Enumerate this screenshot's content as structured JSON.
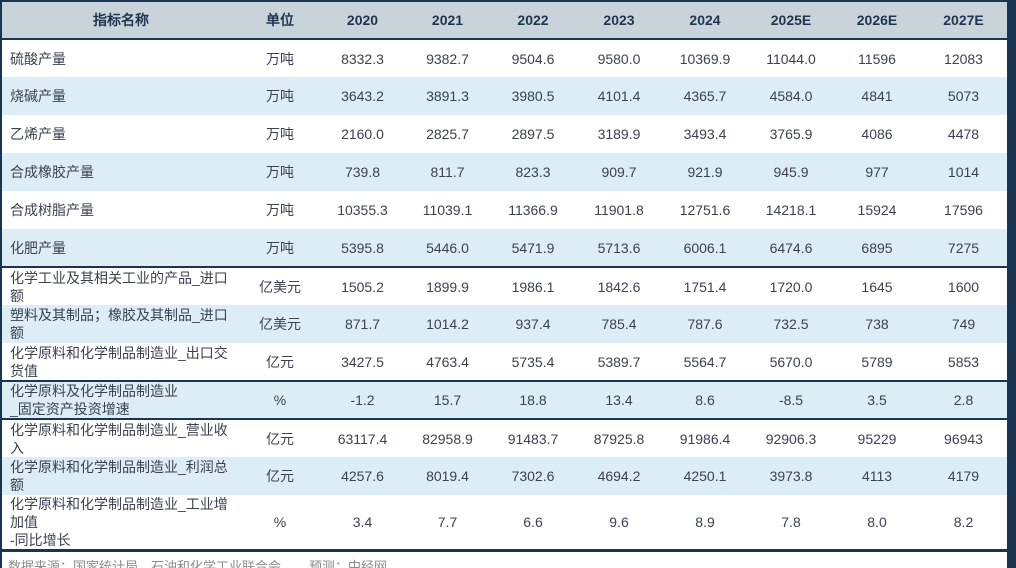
{
  "colors": {
    "accent": "#1a3454",
    "header-bg": "#c9d3da",
    "header-text": "#1f3550",
    "alt-row": "#dcedf5",
    "body-text": "#3c4150",
    "footer-text": "#8c8c8c"
  },
  "table": {
    "columns": [
      "指标名称",
      "单位",
      "2020",
      "2021",
      "2022",
      "2023",
      "2024",
      "2025E",
      "2026E",
      "2027E"
    ],
    "rows": [
      {
        "name": "硫酸产量",
        "unit": "万吨",
        "values": [
          "8332.3",
          "9382.7",
          "9504.6",
          "9580.0",
          "10369.9",
          "11044.0",
          "11596",
          "12083"
        ],
        "divider": false
      },
      {
        "name": "烧碱产量",
        "unit": "万吨",
        "values": [
          "3643.2",
          "3891.3",
          "3980.5",
          "4101.4",
          "4365.7",
          "4584.0",
          "4841",
          "5073"
        ],
        "divider": false
      },
      {
        "name": "乙烯产量",
        "unit": "万吨",
        "values": [
          "2160.0",
          "2825.7",
          "2897.5",
          "3189.9",
          "3493.4",
          "3765.9",
          "4086",
          "4478"
        ],
        "divider": false
      },
      {
        "name": "合成橡胶产量",
        "unit": "万吨",
        "values": [
          "739.8",
          "811.7",
          "823.3",
          "909.7",
          "921.9",
          "945.9",
          "977",
          "1014"
        ],
        "divider": false
      },
      {
        "name": "合成树脂产量",
        "unit": "万吨",
        "values": [
          "10355.3",
          "11039.1",
          "11366.9",
          "11901.8",
          "12751.6",
          "14218.1",
          "15924",
          "17596"
        ],
        "divider": false
      },
      {
        "name": "化肥产量",
        "unit": "万吨",
        "values": [
          "5395.8",
          "5446.0",
          "5471.9",
          "5713.6",
          "6006.1",
          "6474.6",
          "6895",
          "7275"
        ],
        "divider": true
      },
      {
        "name": "化学工业及其相关工业的产品_进口额",
        "unit": "亿美元",
        "values": [
          "1505.2",
          "1899.9",
          "1986.1",
          "1842.6",
          "1751.4",
          "1720.0",
          "1645",
          "1600"
        ],
        "divider": false
      },
      {
        "name": "塑料及其制品；橡胶及其制品_进口额",
        "unit": "亿美元",
        "values": [
          "871.7",
          "1014.2",
          "937.4",
          "785.4",
          "787.6",
          "732.5",
          "738",
          "749"
        ],
        "divider": false
      },
      {
        "name": "化学原料和化学制品制造业_出口交货值",
        "unit": "亿元",
        "values": [
          "3427.5",
          "4763.4",
          "5735.4",
          "5389.7",
          "5564.7",
          "5670.0",
          "5789",
          "5853"
        ],
        "divider": true
      },
      {
        "name": "化学原料及化学制品制造业\n_固定资产投资增速",
        "unit": "%",
        "values": [
          "-1.2",
          "15.7",
          "18.8",
          "13.4",
          "8.6",
          "-8.5",
          "3.5",
          "2.8"
        ],
        "divider": true
      },
      {
        "name": "化学原料和化学制品制造业_营业收入",
        "unit": "亿元",
        "values": [
          "63117.4",
          "82958.9",
          "91483.7",
          "87925.8",
          "91986.4",
          "92906.3",
          "95229",
          "96943"
        ],
        "divider": false
      },
      {
        "name": "化学原料和化学制品制造业_利润总额",
        "unit": "亿元",
        "values": [
          "4257.6",
          "8019.4",
          "7302.6",
          "4694.2",
          "4250.1",
          "3973.8",
          "4113",
          "4179"
        ],
        "divider": false
      },
      {
        "name": "化学原料和化学制品制造业_工业增加值\n-同比增长",
        "unit": "%",
        "values": [
          "3.4",
          "7.7",
          "6.6",
          "9.6",
          "8.9",
          "7.8",
          "8.0",
          "8.2"
        ],
        "divider": true
      }
    ]
  },
  "footer": {
    "source": "数据来源：国家统计局、石油和化学工业联合会",
    "forecast": "预测：中经网"
  }
}
